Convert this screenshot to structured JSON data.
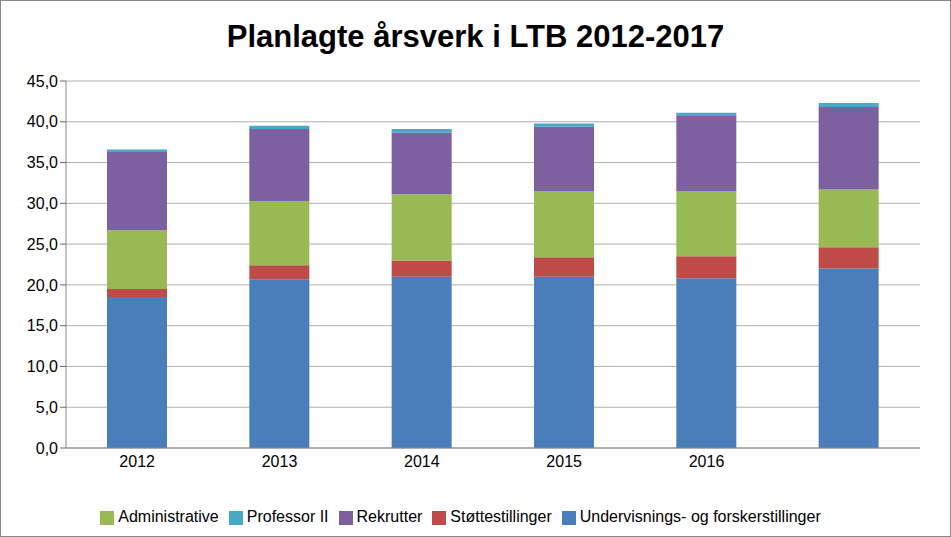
{
  "chart_data": {
    "type": "bar",
    "title": "Planlagte årsverk i LTB 2012-2017",
    "stacked": true,
    "grid": true,
    "legend": "bottom",
    "categories": [
      "2012",
      "2013",
      "2014",
      "2015",
      "2016",
      null
    ],
    "ylim": [
      0,
      45
    ],
    "yticks": [
      {
        "value": 0,
        "label": "0,0"
      },
      {
        "value": 5,
        "label": "5,0"
      },
      {
        "value": 10,
        "label": "10,0"
      },
      {
        "value": 15,
        "label": "15,0"
      },
      {
        "value": 20,
        "label": "20,0"
      },
      {
        "value": 25,
        "label": "25,0"
      },
      {
        "value": 30,
        "label": "30,0"
      },
      {
        "value": 35,
        "label": "35,0"
      },
      {
        "value": 40,
        "label": "40,0"
      },
      {
        "value": 45,
        "label": "45,0"
      }
    ],
    "series": [
      {
        "name": "Undervisnings- og forskerstillinger",
        "color": "#4a7ebb",
        "values": [
          18.5,
          20.7,
          21.0,
          21.0,
          20.8,
          22.0
        ]
      },
      {
        "name": "Støttestillinger",
        "color": "#be4b48",
        "values": [
          1.0,
          1.7,
          2.0,
          2.4,
          2.7,
          2.6
        ]
      },
      {
        "name": "Administrative",
        "color": "#98b954",
        "values": [
          7.2,
          7.9,
          8.1,
          8.1,
          8.0,
          7.1
        ]
      },
      {
        "name": "Rekrutter",
        "color": "#7d60a0",
        "values": [
          9.6,
          8.8,
          7.6,
          7.9,
          9.2,
          10.1
        ]
      },
      {
        "name": "Professor II",
        "color": "#46aac5",
        "values": [
          0.3,
          0.4,
          0.4,
          0.4,
          0.4,
          0.5
        ]
      }
    ]
  }
}
